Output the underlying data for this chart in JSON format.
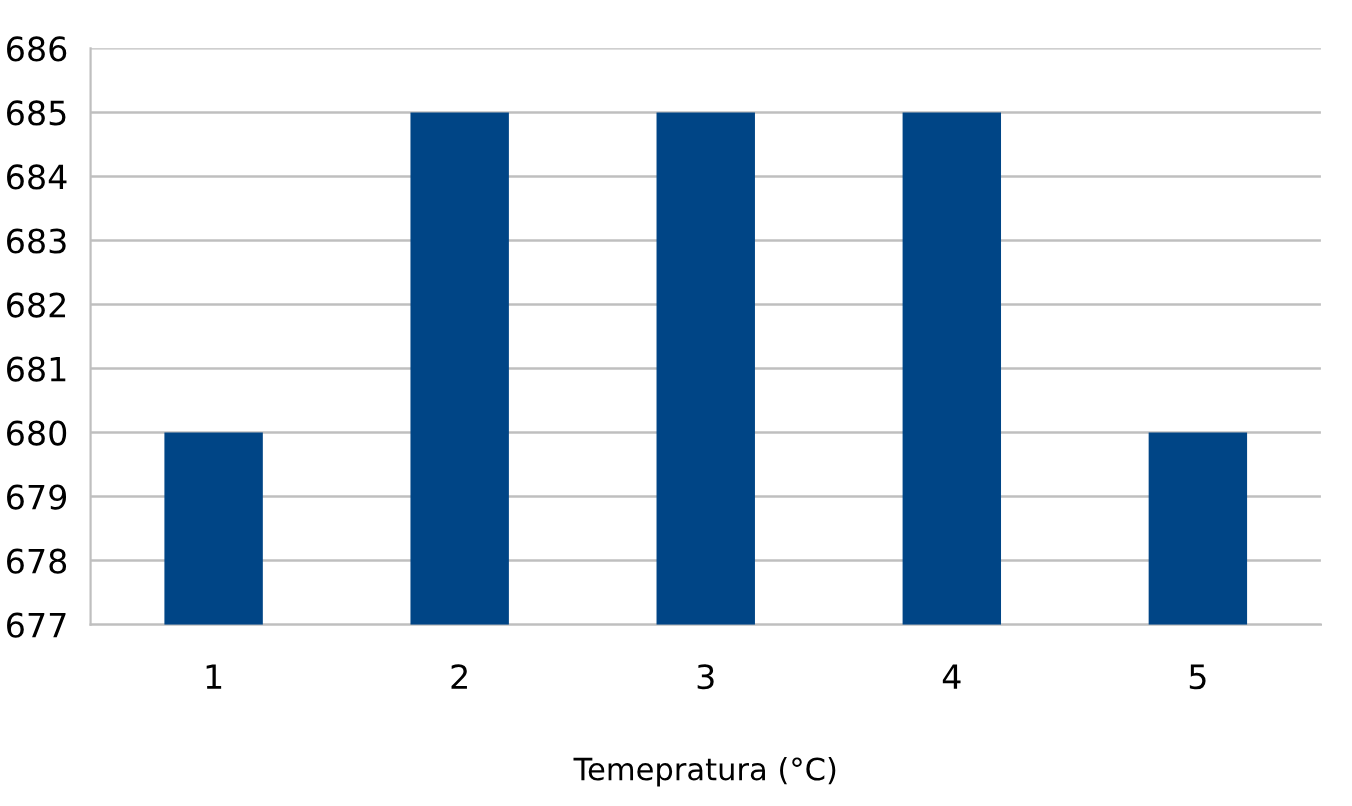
{
  "chart_data": {
    "type": "bar",
    "xlabel": "Temepratura (°C)",
    "categories": [
      "1",
      "2",
      "3",
      "4",
      "5"
    ],
    "values": [
      680,
      685,
      685,
      685,
      680
    ],
    "color": "#004586",
    "ylim": [
      677,
      686
    ],
    "yticks": [
      677,
      678,
      679,
      680,
      681,
      682,
      683,
      684,
      685,
      686
    ],
    "grid": "y"
  }
}
